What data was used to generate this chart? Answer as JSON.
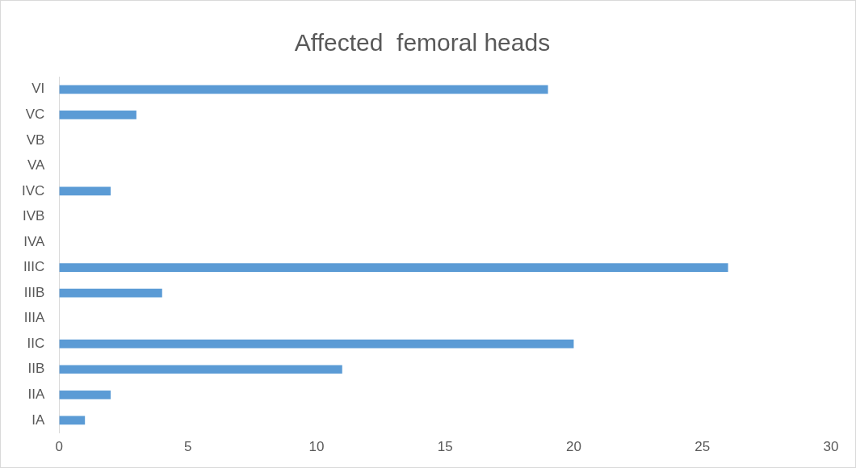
{
  "chart_data": {
    "type": "bar",
    "title": "Affected  femoral heads",
    "orientation": "horizontal",
    "categories": [
      "VI",
      "VC",
      "VB",
      "VA",
      "IVC",
      "IVB",
      "IVA",
      "IIIC",
      "IIIB",
      "IIIA",
      "IIC",
      "IIB",
      "IIA",
      "IA"
    ],
    "values": [
      19,
      3,
      0,
      0,
      2,
      0,
      0,
      26,
      4,
      0,
      20,
      11,
      2,
      1
    ],
    "color": "#5b9bd5",
    "xlim": [
      0,
      30
    ],
    "xticks": [
      0,
      5,
      10,
      15,
      20,
      25,
      30
    ],
    "grid": false,
    "legend": false
  }
}
